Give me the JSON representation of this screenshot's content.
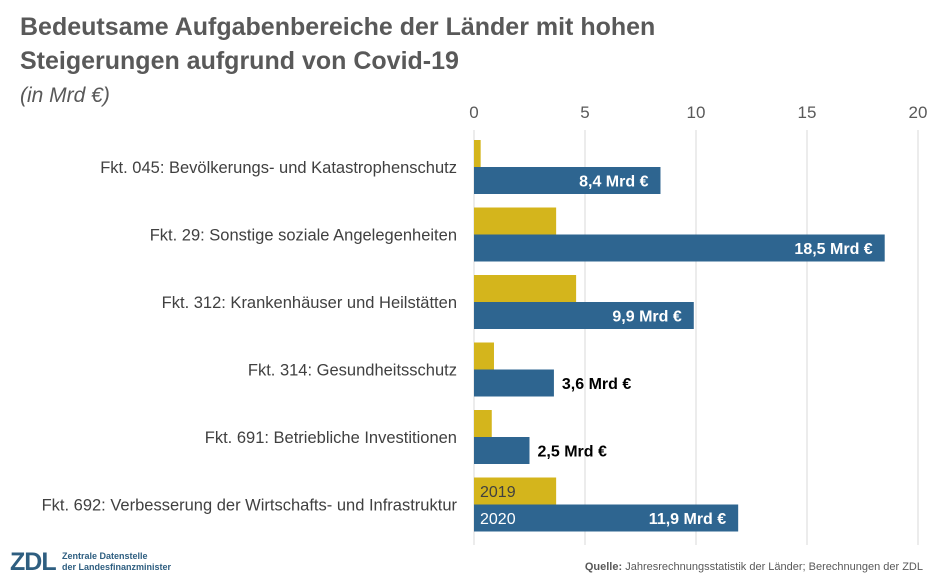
{
  "header": {
    "title": "Bedeutsame Aufgabenbereiche der Länder mit hohen Steigerungen aufgrund von Covid-19",
    "subtitle": "(in Mrd €)"
  },
  "footer": {
    "logo_letters": "ZDL",
    "logo_text": "Zentrale Datenstelle\nder Landesfinanzminister",
    "source_label": "Quelle:",
    "source_text": " Jahresrechnungsstatistik der Länder; Berechnungen der ZDL"
  },
  "colors": {
    "series_2019": "#d4b51c",
    "series_2020": "#2e6590",
    "grid": "#d9d9d9",
    "text": "#404040"
  },
  "chart_data": {
    "type": "bar",
    "orientation": "horizontal",
    "title": "Bedeutsame Aufgabenbereiche der Länder mit hohen Steigerungen aufgrund von Covid-19",
    "subtitle": "(in Mrd €)",
    "categories": [
      "Fkt. 045: Bevölkerungs- und Katastrophenschutz",
      "Fkt. 29: Sonstige soziale Angelegenheiten",
      "Fkt. 312: Krankenhäuser und Heilstätten",
      "Fkt. 314: Gesundheitsschutz",
      "Fkt. 691: Betriebliche Investitionen",
      "Fkt. 692: Verbesserung der Wirtschafts- und Infrastruktur"
    ],
    "series": [
      {
        "name": "2019",
        "values": [
          0.3,
          3.7,
          4.6,
          0.9,
          0.8,
          3.7
        ]
      },
      {
        "name": "2020",
        "values": [
          8.4,
          18.5,
          9.9,
          3.6,
          2.5,
          11.9
        ]
      }
    ],
    "data_labels_2020": [
      "8,4 Mrd €",
      "18,5 Mrd €",
      "9,9 Mrd €",
      "3,6 Mrd €",
      "2,5 Mrd €",
      "11,9 Mrd €"
    ],
    "xlim": [
      0,
      20
    ],
    "xticks": [
      0,
      5,
      10,
      15,
      20
    ],
    "xtick_labels": [
      "0",
      "5",
      "10",
      "15",
      "20"
    ],
    "axis_position": "top",
    "grid": true,
    "legend": "series names shown inside the last category bars"
  }
}
